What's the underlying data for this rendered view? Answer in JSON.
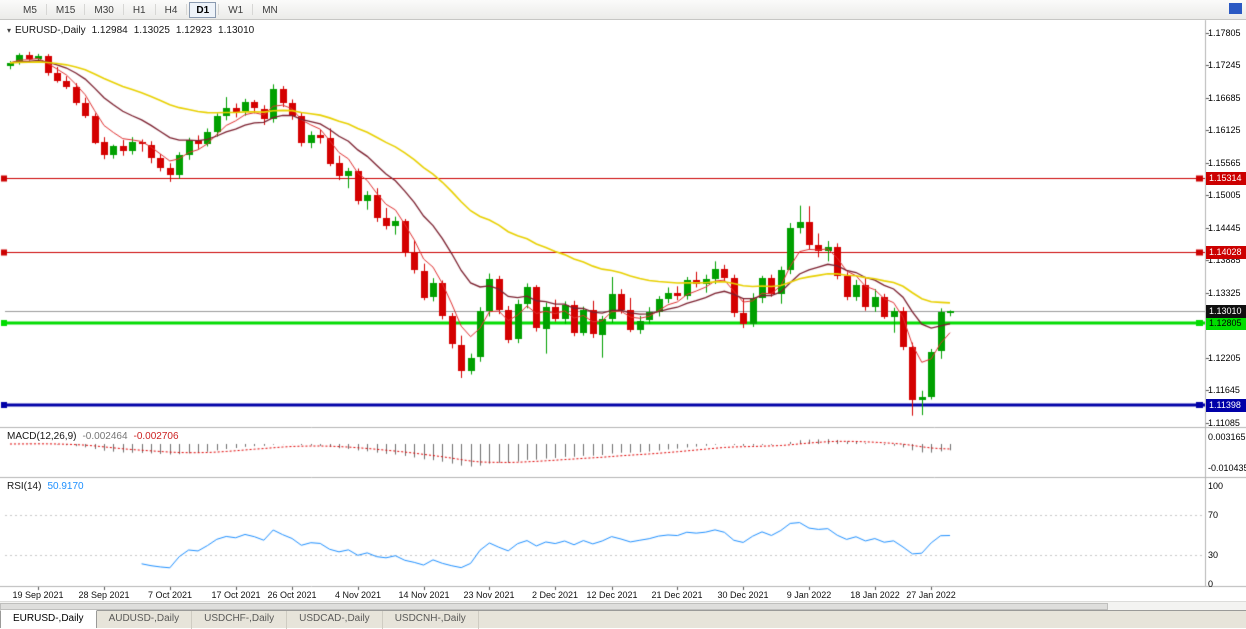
{
  "toolbar": {
    "timeframes": [
      "M5",
      "M15",
      "M30",
      "H1",
      "H4",
      "D1",
      "W1",
      "MN"
    ],
    "active_timeframe": "D1"
  },
  "chart_header": {
    "symbol_period": "EURUSD-,Daily",
    "open": "1.12984",
    "high": "1.13025",
    "low": "1.12923",
    "close": "1.13010"
  },
  "macd_panel": {
    "label": "MACD(12,26,9)",
    "main_value": "-0.002464",
    "signal_value": "-0.002706",
    "axis_max_label": "0.003165",
    "axis_min_label": "-0.010435"
  },
  "rsi_panel": {
    "label": "RSI(14)",
    "value": "50.9170",
    "axis_labels": [
      {
        "value": 100,
        "text": "100"
      },
      {
        "value": 70,
        "text": "70"
      },
      {
        "value": 30,
        "text": "30"
      },
      {
        "value": 0,
        "text": "0"
      }
    ]
  },
  "price_axis": {
    "labels": [
      "1.17805",
      "1.17245",
      "1.16685",
      "1.16125",
      "1.15565",
      "1.15005",
      "1.14445",
      "1.13885",
      "1.13325",
      "1.12205",
      "1.11645",
      "1.11085"
    ]
  },
  "current_price": {
    "value": 1.1301,
    "label": "1.13010",
    "line_color": "#9a9a9a",
    "badge_bg": "#101010",
    "badge_text_color": "#ffffff"
  },
  "hlines": [
    {
      "price": 1.15314,
      "label": "1.15314",
      "color": "#cc0000",
      "line_width": 1,
      "badge_text_color": "#ffffff"
    },
    {
      "price": 1.14028,
      "label": "1.14028",
      "color": "#cc0000",
      "line_width": 1,
      "badge_text_color": "#ffffff"
    },
    {
      "price": 1.12805,
      "label": "1.12805",
      "color": "#00dc00",
      "line_width": 3,
      "badge_text_color": "#000000"
    },
    {
      "price": 1.11398,
      "label": "1.11398",
      "color": "#0000a8",
      "line_width": 3,
      "badge_text_color": "#ffffff"
    }
  ],
  "time_axis": {
    "labels": [
      {
        "text": "19 Sep 2021",
        "candle_index": 3
      },
      {
        "text": "28 Sep 2021",
        "candle_index": 10
      },
      {
        "text": "7 Oct 2021",
        "candle_index": 17
      },
      {
        "text": "17 Oct 2021",
        "candle_index": 24
      },
      {
        "text": "26 Oct 2021",
        "candle_index": 30
      },
      {
        "text": "4 Nov 2021",
        "candle_index": 37
      },
      {
        "text": "14 Nov 2021",
        "candle_index": 44
      },
      {
        "text": "23 Nov 2021",
        "candle_index": 51
      },
      {
        "text": "2 Dec 2021",
        "candle_index": 58
      },
      {
        "text": "12 Dec 2021",
        "candle_index": 64
      },
      {
        "text": "21 Dec 2021",
        "candle_index": 71
      },
      {
        "text": "30 Dec 2021",
        "candle_index": 78
      },
      {
        "text": "9 Jan 2022",
        "candle_index": 85
      },
      {
        "text": "18 Jan 2022",
        "candle_index": 92
      },
      {
        "text": "27 Jan 2022",
        "candle_index": 98
      }
    ]
  },
  "tabs": [
    {
      "label": "EURUSD-,Daily",
      "active": true
    },
    {
      "label": "AUDUSD-,Daily",
      "active": false
    },
    {
      "label": "USDCHF-,Daily",
      "active": false
    },
    {
      "label": "USDCAD-,Daily",
      "active": false
    },
    {
      "label": "USDCNH-,Daily",
      "active": false
    }
  ],
  "chart_data": {
    "type": "candlestick",
    "symbol": "EURUSD-",
    "timeframe": "Daily",
    "up_color": "#00a000",
    "down_color": "#d40000",
    "price_range": [
      1.11085,
      1.17805
    ],
    "candles": [
      [
        1.1723,
        1.1732,
        1.1718,
        1.1729
      ],
      [
        1.1729,
        1.17455,
        1.1726,
        1.1743
      ],
      [
        1.1743,
        1.1748,
        1.1733,
        1.1736
      ],
      [
        1.1736,
        1.17445,
        1.1729,
        1.17415
      ],
      [
        1.17415,
        1.1744,
        1.1707,
        1.1712
      ],
      [
        1.1712,
        1.1722,
        1.1695,
        1.1698
      ],
      [
        1.1698,
        1.1706,
        1.1684,
        1.1688
      ],
      [
        1.1688,
        1.1694,
        1.1656,
        1.166
      ],
      [
        1.166,
        1.1669,
        1.1634,
        1.1638
      ],
      [
        1.1638,
        1.1642,
        1.1589,
        1.1592
      ],
      [
        1.1592,
        1.1601,
        1.1563,
        1.157
      ],
      [
        1.157,
        1.1588,
        1.1564,
        1.1585
      ],
      [
        1.1585,
        1.1596,
        1.1569,
        1.1577
      ],
      [
        1.1577,
        1.1601,
        1.1571,
        1.1592
      ],
      [
        1.1592,
        1.1597,
        1.1576,
        1.1588
      ],
      [
        1.1588,
        1.1594,
        1.1556,
        1.1565
      ],
      [
        1.1565,
        1.1572,
        1.1542,
        1.1548
      ],
      [
        1.1548,
        1.1556,
        1.1524,
        1.1536
      ],
      [
        1.1536,
        1.1575,
        1.1529,
        1.1571
      ],
      [
        1.1571,
        1.16,
        1.1562,
        1.1596
      ],
      [
        1.1596,
        1.1604,
        1.1581,
        1.1589
      ],
      [
        1.1589,
        1.1616,
        1.1585,
        1.161
      ],
      [
        1.161,
        1.1642,
        1.1602,
        1.1638
      ],
      [
        1.1638,
        1.167,
        1.163,
        1.1652
      ],
      [
        1.1652,
        1.1659,
        1.1635,
        1.1645
      ],
      [
        1.1645,
        1.1667,
        1.1638,
        1.1661
      ],
      [
        1.1661,
        1.1665,
        1.1642,
        1.165
      ],
      [
        1.165,
        1.1656,
        1.1622,
        1.1632
      ],
      [
        1.1632,
        1.1692,
        1.1626,
        1.1684
      ],
      [
        1.1684,
        1.1689,
        1.1653,
        1.166
      ],
      [
        1.166,
        1.1666,
        1.1631,
        1.1638
      ],
      [
        1.1638,
        1.1644,
        1.1585,
        1.1592
      ],
      [
        1.1592,
        1.1611,
        1.1582,
        1.1605
      ],
      [
        1.1605,
        1.1614,
        1.159,
        1.16
      ],
      [
        1.16,
        1.1616,
        1.1551,
        1.1556
      ],
      [
        1.1556,
        1.1569,
        1.1527,
        1.1533
      ],
      [
        1.1533,
        1.1548,
        1.1513,
        1.1542
      ],
      [
        1.1542,
        1.1547,
        1.1485,
        1.149
      ],
      [
        1.149,
        1.1508,
        1.1476,
        1.1501
      ],
      [
        1.1501,
        1.1513,
        1.1455,
        1.1461
      ],
      [
        1.1461,
        1.1479,
        1.1442,
        1.1447
      ],
      [
        1.1447,
        1.1464,
        1.1433,
        1.1456
      ],
      [
        1.1456,
        1.146,
        1.1395,
        1.1401
      ],
      [
        1.1401,
        1.1423,
        1.1366,
        1.1371
      ],
      [
        1.1371,
        1.1383,
        1.132,
        1.1325
      ],
      [
        1.1325,
        1.1358,
        1.1318,
        1.1349
      ],
      [
        1.1349,
        1.1354,
        1.1287,
        1.1292
      ],
      [
        1.1292,
        1.1298,
        1.1237,
        1.1243
      ],
      [
        1.1243,
        1.1259,
        1.1186,
        1.1199
      ],
      [
        1.1199,
        1.1228,
        1.1192,
        1.1221
      ],
      [
        1.1221,
        1.1308,
        1.1214,
        1.1301
      ],
      [
        1.1301,
        1.1366,
        1.1292,
        1.1357
      ],
      [
        1.1357,
        1.1362,
        1.1296,
        1.1304
      ],
      [
        1.1304,
        1.131,
        1.1246,
        1.1252
      ],
      [
        1.1252,
        1.1321,
        1.1246,
        1.1313
      ],
      [
        1.1313,
        1.1349,
        1.1306,
        1.1342
      ],
      [
        1.1342,
        1.1346,
        1.1266,
        1.1271
      ],
      [
        1.1271,
        1.1316,
        1.1228,
        1.1309
      ],
      [
        1.1309,
        1.1321,
        1.1283,
        1.1288
      ],
      [
        1.1288,
        1.1318,
        1.1279,
        1.1312
      ],
      [
        1.1312,
        1.1319,
        1.1258,
        1.1264
      ],
      [
        1.1264,
        1.1309,
        1.1259,
        1.1303
      ],
      [
        1.1303,
        1.1319,
        1.1255,
        1.1261
      ],
      [
        1.1261,
        1.1293,
        1.1221,
        1.1288
      ],
      [
        1.1288,
        1.136,
        1.1281,
        1.1331
      ],
      [
        1.1331,
        1.1339,
        1.1297,
        1.1304
      ],
      [
        1.1304,
        1.1324,
        1.1265,
        1.127
      ],
      [
        1.127,
        1.1293,
        1.1262,
        1.1285
      ],
      [
        1.1285,
        1.1308,
        1.1279,
        1.1299
      ],
      [
        1.1299,
        1.1327,
        1.1292,
        1.1322
      ],
      [
        1.1322,
        1.1342,
        1.1315,
        1.1332
      ],
      [
        1.1332,
        1.1344,
        1.132,
        1.1327
      ],
      [
        1.1327,
        1.136,
        1.1321,
        1.1355
      ],
      [
        1.1355,
        1.1369,
        1.1342,
        1.1348
      ],
      [
        1.1348,
        1.1364,
        1.1333,
        1.1356
      ],
      [
        1.1356,
        1.1387,
        1.1348,
        1.1374
      ],
      [
        1.1374,
        1.1381,
        1.1353,
        1.1358
      ],
      [
        1.1358,
        1.1364,
        1.1291,
        1.1298
      ],
      [
        1.1298,
        1.1323,
        1.1272,
        1.1279
      ],
      [
        1.1279,
        1.1332,
        1.1274,
        1.1323
      ],
      [
        1.1323,
        1.1362,
        1.1315,
        1.1358
      ],
      [
        1.1358,
        1.1364,
        1.1326,
        1.133
      ],
      [
        1.133,
        1.1378,
        1.1314,
        1.1372
      ],
      [
        1.1372,
        1.1453,
        1.1365,
        1.1445
      ],
      [
        1.1445,
        1.1483,
        1.1435,
        1.1455
      ],
      [
        1.1455,
        1.1482,
        1.1408,
        1.1415
      ],
      [
        1.1415,
        1.1435,
        1.1394,
        1.1405
      ],
      [
        1.1405,
        1.1422,
        1.1387,
        1.1412
      ],
      [
        1.1412,
        1.1418,
        1.1356,
        1.1362
      ],
      [
        1.1362,
        1.1368,
        1.132,
        1.1325
      ],
      [
        1.1325,
        1.1355,
        1.1319,
        1.1346
      ],
      [
        1.1346,
        1.136,
        1.1302,
        1.1308
      ],
      [
        1.1308,
        1.1339,
        1.13,
        1.1326
      ],
      [
        1.1326,
        1.1331,
        1.1288,
        1.1292
      ],
      [
        1.1292,
        1.1307,
        1.1264,
        1.1302
      ],
      [
        1.1302,
        1.1308,
        1.1234,
        1.124
      ],
      [
        1.124,
        1.1247,
        1.1121,
        1.1148
      ],
      [
        1.1148,
        1.1164,
        1.1122,
        1.1153
      ],
      [
        1.1153,
        1.1236,
        1.1149,
        1.1231
      ],
      [
        1.1231,
        1.1306,
        1.1219,
        1.1299
      ],
      [
        1.12984,
        1.13025,
        1.12923,
        1.1301
      ]
    ],
    "overlays": [
      {
        "name": "ma-fast",
        "period": 5,
        "color": "#e03030",
        "width": 1
      },
      {
        "name": "ma-mid",
        "period": 13,
        "color": "#7b1f2e",
        "width": 1.3
      },
      {
        "name": "ma-slow",
        "period": 34,
        "color": "#e8d000",
        "width": 1.6
      }
    ],
    "macd": {
      "fast": 12,
      "slow": 26,
      "signal": 9,
      "histogram_color": "#6e6e6e",
      "signal_color": "#e00000",
      "axis_max": 0.003165,
      "axis_min": -0.010435
    },
    "rsi": {
      "period": 14,
      "color": "#1e90ff",
      "levels": [
        70,
        30
      ],
      "level_color": "#c8c8c8",
      "axis_range": [
        0,
        100
      ]
    }
  }
}
